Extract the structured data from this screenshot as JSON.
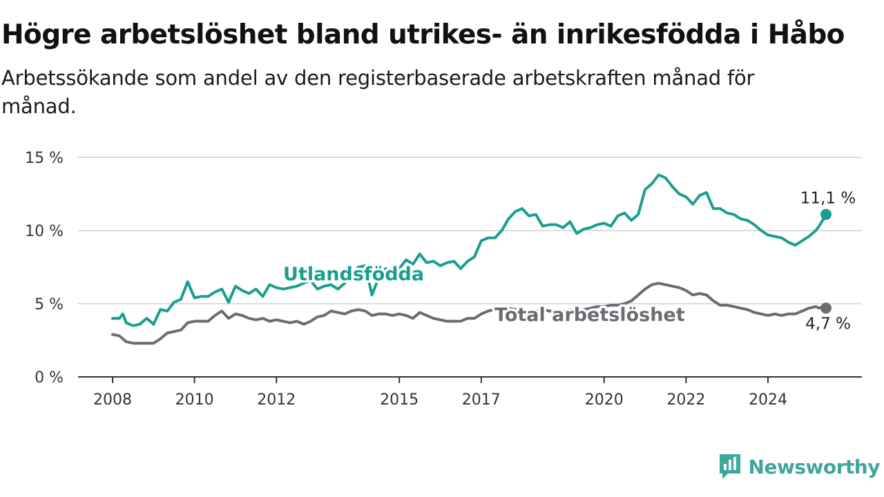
{
  "header": {
    "title": "Högre arbetslöshet bland utrikes- än inrikesfödda i Håbo",
    "subtitle": "Arbetssökande som andel av den registerbaserade arbetskraften månad för månad."
  },
  "brand": {
    "name": "Newsworthy",
    "icon": "newsworthy-logo-icon",
    "color": "#3fa79a"
  },
  "chart_data": {
    "type": "line",
    "title": "Högre arbetslöshet bland utrikes- än inrikesfödda i Håbo",
    "subtitle": "Arbetssökande som andel av den registerbaserade arbetskraften månad för månad.",
    "xlabel": "",
    "ylabel": "",
    "ylim": [
      0,
      15
    ],
    "xlim": [
      "2008-01",
      "2025-06"
    ],
    "y_ticks": [
      {
        "value": 0,
        "label": "0 %"
      },
      {
        "value": 5,
        "label": "5 %"
      },
      {
        "value": 10,
        "label": "10 %"
      },
      {
        "value": 15,
        "label": "15 %"
      }
    ],
    "x_ticks": [
      {
        "value": "2008-01",
        "label": "2008"
      },
      {
        "value": "2010-01",
        "label": "2010"
      },
      {
        "value": "2012-01",
        "label": "2012"
      },
      {
        "value": "2015-01",
        "label": "2015"
      },
      {
        "value": "2017-01",
        "label": "2017"
      },
      {
        "value": "2020-01",
        "label": "2020"
      },
      {
        "value": "2022-01",
        "label": "2022"
      },
      {
        "value": "2024-01",
        "label": "2024"
      }
    ],
    "grid": "horizontal",
    "legend": "inline-labels",
    "series": [
      {
        "name": "Utlandsfödda",
        "color": "#1a9e8f",
        "end_label": "11,1 %",
        "points": [
          [
            "2008-01",
            4.0
          ],
          [
            "2008-03",
            4.0
          ],
          [
            "2008-04",
            4.3
          ],
          [
            "2008-05",
            3.7
          ],
          [
            "2008-07",
            3.5
          ],
          [
            "2008-09",
            3.6
          ],
          [
            "2008-11",
            4.0
          ],
          [
            "2009-01",
            3.6
          ],
          [
            "2009-03",
            4.6
          ],
          [
            "2009-05",
            4.5
          ],
          [
            "2009-07",
            5.1
          ],
          [
            "2009-09",
            5.3
          ],
          [
            "2009-11",
            6.5
          ],
          [
            "2010-01",
            5.4
          ],
          [
            "2010-03",
            5.5
          ],
          [
            "2010-05",
            5.5
          ],
          [
            "2010-07",
            5.8
          ],
          [
            "2010-09",
            6.0
          ],
          [
            "2010-11",
            5.1
          ],
          [
            "2011-01",
            6.2
          ],
          [
            "2011-03",
            5.9
          ],
          [
            "2011-05",
            5.7
          ],
          [
            "2011-07",
            6.0
          ],
          [
            "2011-09",
            5.5
          ],
          [
            "2011-11",
            6.3
          ],
          [
            "2012-01",
            6.1
          ],
          [
            "2012-03",
            6.0
          ],
          [
            "2012-05",
            6.1
          ],
          [
            "2012-07",
            6.2
          ],
          [
            "2012-09",
            6.4
          ],
          [
            "2012-11",
            6.6
          ],
          [
            "2013-01",
            6.0
          ],
          [
            "2013-03",
            6.2
          ],
          [
            "2013-05",
            6.3
          ],
          [
            "2013-07",
            6.0
          ],
          [
            "2013-09",
            6.4
          ],
          [
            "2013-11",
            7.0
          ],
          [
            "2014-01",
            7.5
          ],
          [
            "2014-03",
            7.6
          ],
          [
            "2014-05",
            5.6
          ],
          [
            "2014-07",
            6.8
          ],
          [
            "2014-09",
            7.4
          ],
          [
            "2014-11",
            7.2
          ],
          [
            "2015-01",
            7.4
          ],
          [
            "2015-03",
            8.0
          ],
          [
            "2015-05",
            7.7
          ],
          [
            "2015-07",
            8.4
          ],
          [
            "2015-09",
            7.8
          ],
          [
            "2015-11",
            7.9
          ],
          [
            "2016-01",
            7.6
          ],
          [
            "2016-03",
            7.8
          ],
          [
            "2016-05",
            7.9
          ],
          [
            "2016-07",
            7.4
          ],
          [
            "2016-09",
            7.9
          ],
          [
            "2016-11",
            8.2
          ],
          [
            "2017-01",
            9.3
          ],
          [
            "2017-03",
            9.5
          ],
          [
            "2017-05",
            9.5
          ],
          [
            "2017-07",
            10.0
          ],
          [
            "2017-09",
            10.8
          ],
          [
            "2017-11",
            11.3
          ],
          [
            "2018-01",
            11.5
          ],
          [
            "2018-03",
            11.0
          ],
          [
            "2018-05",
            11.1
          ],
          [
            "2018-07",
            10.3
          ],
          [
            "2018-09",
            10.4
          ],
          [
            "2018-11",
            10.4
          ],
          [
            "2019-01",
            10.2
          ],
          [
            "2019-03",
            10.6
          ],
          [
            "2019-05",
            9.8
          ],
          [
            "2019-07",
            10.1
          ],
          [
            "2019-09",
            10.2
          ],
          [
            "2019-11",
            10.4
          ],
          [
            "2020-01",
            10.5
          ],
          [
            "2020-03",
            10.3
          ],
          [
            "2020-05",
            11.0
          ],
          [
            "2020-07",
            11.2
          ],
          [
            "2020-09",
            10.7
          ],
          [
            "2020-11",
            11.1
          ],
          [
            "2021-01",
            12.8
          ],
          [
            "2021-03",
            13.2
          ],
          [
            "2021-05",
            13.8
          ],
          [
            "2021-07",
            13.6
          ],
          [
            "2021-09",
            13.0
          ],
          [
            "2021-11",
            12.5
          ],
          [
            "2022-01",
            12.3
          ],
          [
            "2022-03",
            11.8
          ],
          [
            "2022-05",
            12.4
          ],
          [
            "2022-07",
            12.6
          ],
          [
            "2022-09",
            11.5
          ],
          [
            "2022-11",
            11.5
          ],
          [
            "2023-01",
            11.2
          ],
          [
            "2023-03",
            11.1
          ],
          [
            "2023-05",
            10.8
          ],
          [
            "2023-07",
            10.7
          ],
          [
            "2023-09",
            10.4
          ],
          [
            "2023-11",
            10.0
          ],
          [
            "2024-01",
            9.7
          ],
          [
            "2024-03",
            9.6
          ],
          [
            "2024-05",
            9.5
          ],
          [
            "2024-07",
            9.2
          ],
          [
            "2024-09",
            9.0
          ],
          [
            "2024-11",
            9.3
          ],
          [
            "2025-01",
            9.6
          ],
          [
            "2025-03",
            10.0
          ],
          [
            "2025-04",
            10.3
          ],
          [
            "2025-05",
            10.7
          ],
          [
            "2025-06",
            11.1
          ]
        ]
      },
      {
        "name": "Total arbetslöshet",
        "color": "#6b6b72",
        "end_label": "4,7 %",
        "points": [
          [
            "2008-01",
            2.9
          ],
          [
            "2008-03",
            2.8
          ],
          [
            "2008-05",
            2.4
          ],
          [
            "2008-07",
            2.3
          ],
          [
            "2008-09",
            2.3
          ],
          [
            "2008-11",
            2.3
          ],
          [
            "2009-01",
            2.3
          ],
          [
            "2009-03",
            2.6
          ],
          [
            "2009-05",
            3.0
          ],
          [
            "2009-07",
            3.1
          ],
          [
            "2009-09",
            3.2
          ],
          [
            "2009-11",
            3.7
          ],
          [
            "2010-01",
            3.8
          ],
          [
            "2010-03",
            3.8
          ],
          [
            "2010-05",
            3.8
          ],
          [
            "2010-07",
            4.2
          ],
          [
            "2010-09",
            4.5
          ],
          [
            "2010-11",
            4.0
          ],
          [
            "2011-01",
            4.3
          ],
          [
            "2011-03",
            4.2
          ],
          [
            "2011-05",
            4.0
          ],
          [
            "2011-07",
            3.9
          ],
          [
            "2011-09",
            4.0
          ],
          [
            "2011-11",
            3.8
          ],
          [
            "2012-01",
            3.9
          ],
          [
            "2012-03",
            3.8
          ],
          [
            "2012-05",
            3.7
          ],
          [
            "2012-07",
            3.8
          ],
          [
            "2012-09",
            3.6
          ],
          [
            "2012-11",
            3.8
          ],
          [
            "2013-01",
            4.1
          ],
          [
            "2013-03",
            4.2
          ],
          [
            "2013-05",
            4.5
          ],
          [
            "2013-07",
            4.4
          ],
          [
            "2013-09",
            4.3
          ],
          [
            "2013-11",
            4.5
          ],
          [
            "2014-01",
            4.6
          ],
          [
            "2014-03",
            4.5
          ],
          [
            "2014-05",
            4.2
          ],
          [
            "2014-07",
            4.3
          ],
          [
            "2014-09",
            4.3
          ],
          [
            "2014-11",
            4.2
          ],
          [
            "2015-01",
            4.3
          ],
          [
            "2015-03",
            4.2
          ],
          [
            "2015-05",
            4.0
          ],
          [
            "2015-07",
            4.4
          ],
          [
            "2015-09",
            4.2
          ],
          [
            "2015-11",
            4.0
          ],
          [
            "2016-01",
            3.9
          ],
          [
            "2016-03",
            3.8
          ],
          [
            "2016-05",
            3.8
          ],
          [
            "2016-07",
            3.8
          ],
          [
            "2016-09",
            4.0
          ],
          [
            "2016-11",
            4.0
          ],
          [
            "2017-01",
            4.3
          ],
          [
            "2017-03",
            4.5
          ],
          [
            "2017-05",
            4.6
          ],
          [
            "2017-07",
            4.6
          ],
          [
            "2017-09",
            4.7
          ],
          [
            "2017-11",
            4.6
          ],
          [
            "2018-01",
            4.6
          ],
          [
            "2018-03",
            4.5
          ],
          [
            "2018-05",
            4.5
          ],
          [
            "2018-07",
            4.6
          ],
          [
            "2018-09",
            4.5
          ],
          [
            "2018-11",
            4.5
          ],
          [
            "2019-01",
            4.5
          ],
          [
            "2019-03",
            4.6
          ],
          [
            "2019-05",
            4.5
          ],
          [
            "2019-07",
            4.6
          ],
          [
            "2019-09",
            4.7
          ],
          [
            "2019-11",
            4.8
          ],
          [
            "2020-01",
            4.8
          ],
          [
            "2020-03",
            4.9
          ],
          [
            "2020-05",
            4.9
          ],
          [
            "2020-07",
            5.0
          ],
          [
            "2020-09",
            5.2
          ],
          [
            "2020-11",
            5.6
          ],
          [
            "2021-01",
            6.0
          ],
          [
            "2021-03",
            6.3
          ],
          [
            "2021-05",
            6.4
          ],
          [
            "2021-07",
            6.3
          ],
          [
            "2021-09",
            6.2
          ],
          [
            "2021-11",
            6.1
          ],
          [
            "2022-01",
            5.9
          ],
          [
            "2022-03",
            5.6
          ],
          [
            "2022-05",
            5.7
          ],
          [
            "2022-07",
            5.6
          ],
          [
            "2022-09",
            5.2
          ],
          [
            "2022-11",
            4.9
          ],
          [
            "2023-01",
            4.9
          ],
          [
            "2023-03",
            4.8
          ],
          [
            "2023-05",
            4.7
          ],
          [
            "2023-07",
            4.6
          ],
          [
            "2023-09",
            4.4
          ],
          [
            "2023-11",
            4.3
          ],
          [
            "2024-01",
            4.2
          ],
          [
            "2024-03",
            4.3
          ],
          [
            "2024-05",
            4.2
          ],
          [
            "2024-07",
            4.3
          ],
          [
            "2024-09",
            4.3
          ],
          [
            "2024-11",
            4.5
          ],
          [
            "2025-01",
            4.7
          ],
          [
            "2025-03",
            4.8
          ],
          [
            "2025-04",
            4.7
          ],
          [
            "2025-05",
            4.8
          ],
          [
            "2025-06",
            4.7
          ]
        ]
      }
    ]
  }
}
